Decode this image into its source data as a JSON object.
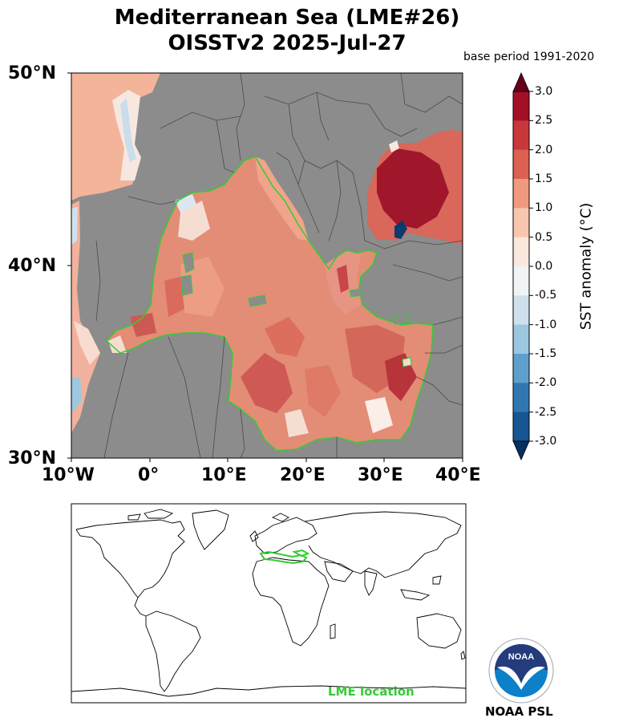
{
  "title": {
    "line1": "Mediterranean Sea (LME#26)",
    "line2": "OISSTv2 2025-Jul-27"
  },
  "base_period": "base period 1991-2020",
  "map": {
    "lat_labels": [
      "50°N",
      "40°N",
      "30°N"
    ],
    "lon_labels": [
      "10°W",
      "0°",
      "10°E",
      "20°E",
      "30°E",
      "40°E"
    ],
    "extent": {
      "lon": [
        -10,
        40
      ],
      "lat": [
        30,
        50
      ]
    },
    "land_color": "#8c8c8c",
    "lme_outline_color": "#33cc33"
  },
  "colorbar": {
    "label": "SST anomaly ($^\\circ$C)",
    "label_display": "SST anomaly (°C)",
    "ticks": [
      "3.0",
      "2.5",
      "2.0",
      "1.5",
      "1.0",
      "0.5",
      "0.0",
      "-0.5",
      "-1.0",
      "-1.5",
      "-2.0",
      "-2.5",
      "-3.0"
    ],
    "colors": [
      "#a50f25",
      "#c8383b",
      "#dc6150",
      "#ef9a7d",
      "#f8c6ac",
      "#fbe8dd",
      "#f1f4f6",
      "#cfe0ed",
      "#9bc7e0",
      "#5f9fcc",
      "#3077b2",
      "#175593"
    ],
    "over_color": "#67001f",
    "under_color": "#053061"
  },
  "inset": {
    "label": "LME location"
  },
  "logo": {
    "text": "NOAA",
    "caption": "NOAA PSL"
  }
}
